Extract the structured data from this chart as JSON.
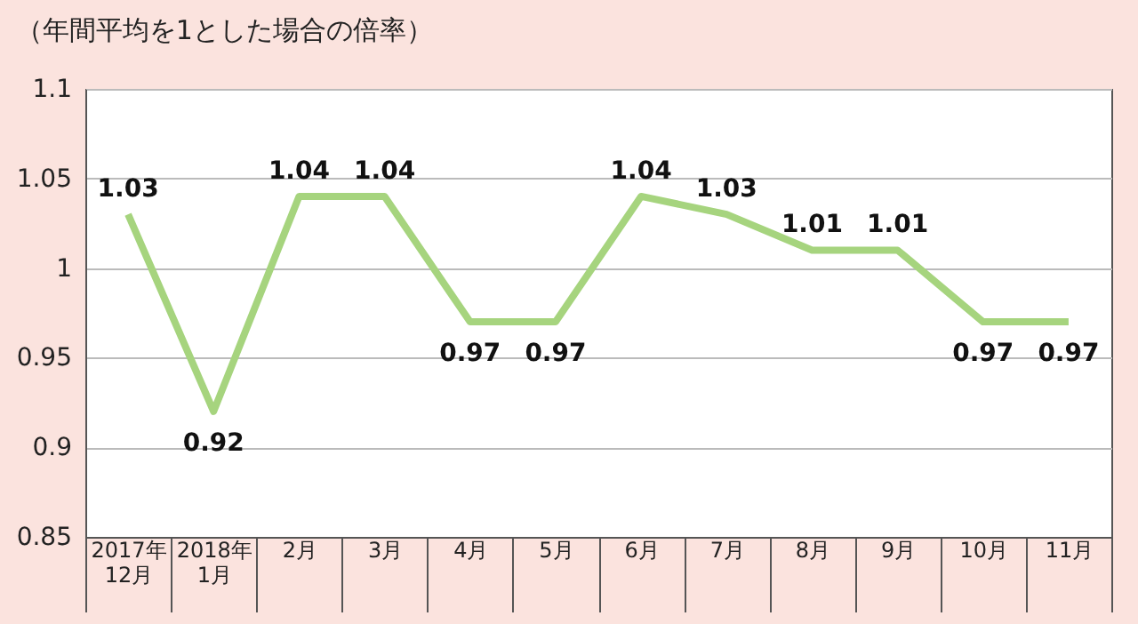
{
  "chart_data": {
    "type": "line",
    "title": "（年間平均を1とした場合の倍率）",
    "categories": [
      "2017年\n12月",
      "2018年\n1月",
      "2月",
      "3月",
      "4月",
      "5月",
      "6月",
      "7月",
      "8月",
      "9月",
      "10月",
      "11月"
    ],
    "series": [
      {
        "color": "#a6d47e",
        "values": [
          1.03,
          0.92,
          1.04,
          1.04,
          0.97,
          0.97,
          1.04,
          1.03,
          1.01,
          1.01,
          0.97,
          0.97
        ]
      }
    ],
    "ylim": [
      0.85,
      1.1
    ],
    "yticks": [
      0.85,
      0.9,
      0.95,
      1,
      1.05,
      1.1
    ],
    "grid": "y",
    "data_labels": true,
    "marker": "none",
    "line_style": "solid"
  }
}
